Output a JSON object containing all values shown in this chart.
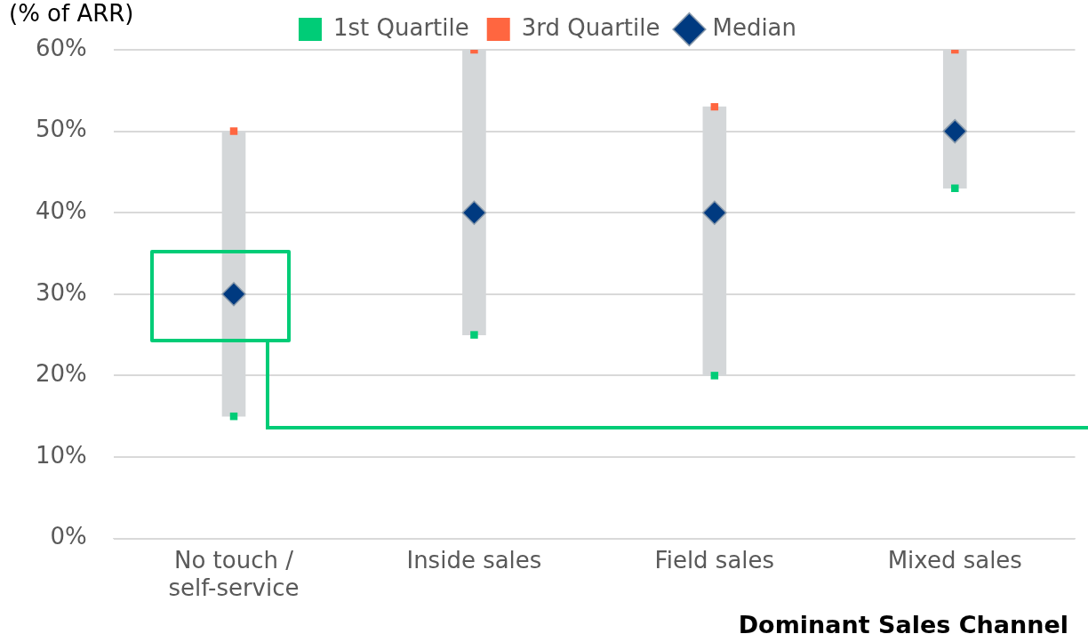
{
  "chart_data": {
    "type": "bar",
    "ylabel": "(% of ARR)",
    "xlabel": "Dominant Sales Channel",
    "categories": [
      "No touch / self-service",
      "Inside sales",
      "Field sales",
      "Mixed sales"
    ],
    "series": [
      {
        "type": "bar",
        "color": "#d4d7d9",
        "base": [
          15,
          25,
          20,
          43
        ],
        "values": [
          35,
          35,
          33,
          17
        ]
      },
      {
        "type": "scatter",
        "name": "1st Quartile",
        "color": "#00cc77",
        "marker": "square",
        "values": [
          15,
          25,
          20,
          43
        ]
      },
      {
        "type": "scatter",
        "name": "3rd Quartile",
        "color": "#ff6640",
        "marker": "square",
        "values": [
          50,
          60,
          53,
          60
        ]
      },
      {
        "type": "scatter",
        "name": "Median",
        "color": "#003a80",
        "marker": "diamond",
        "values": [
          30,
          40,
          40,
          50
        ]
      }
    ],
    "ylim": [
      0,
      60
    ],
    "yticks": [
      {
        "value": 0,
        "label": "0%"
      },
      {
        "value": 10,
        "label": "10%"
      },
      {
        "value": 20,
        "label": "20%"
      },
      {
        "value": 30,
        "label": "30%"
      },
      {
        "value": 40,
        "label": "40%"
      },
      {
        "value": 50,
        "label": "50%"
      },
      {
        "value": 60,
        "label": "60%"
      }
    ],
    "grid": "y",
    "legend": "top"
  }
}
